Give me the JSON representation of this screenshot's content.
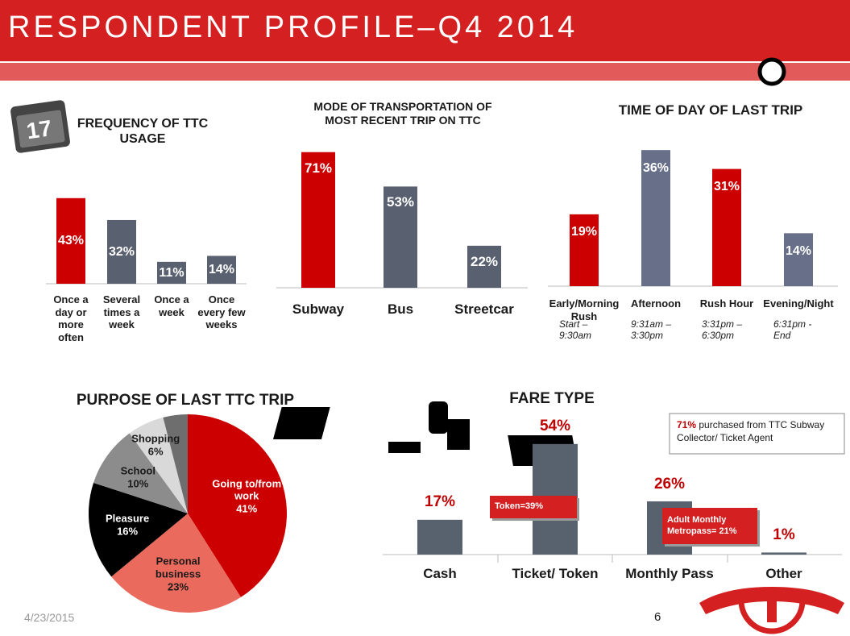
{
  "title": "RESPONDENT PROFILE–Q4 2014",
  "date": "4/23/2015",
  "page_number": "6",
  "chart_data": [
    {
      "type": "bar",
      "title": "FREQUENCY OF TTC USAGE",
      "categories": [
        "Once a day or more often",
        "Several times a week",
        "Once a week",
        "Once every few weeks"
      ],
      "values": [
        43,
        32,
        11,
        14
      ],
      "value_labels": [
        "43%",
        "32%",
        "11%",
        "14%"
      ],
      "colors": [
        "#cc0000",
        "#596170",
        "#596170",
        "#596170"
      ]
    },
    {
      "type": "bar",
      "title": "MODE OF TRANSPORTATION OF MOST RECENT TRIP ON TTC",
      "categories": [
        "Subway",
        "Bus",
        "Streetcar"
      ],
      "values": [
        71,
        53,
        22
      ],
      "value_labels": [
        "71%",
        "53%",
        "22%"
      ],
      "colors": [
        "#cc0000",
        "#596170",
        "#596170"
      ]
    },
    {
      "type": "bar",
      "title": "TIME OF DAY OF LAST TRIP",
      "categories": [
        "Early/Morning Rush",
        "Afternoon",
        "Rush Hour",
        "Evening/Night"
      ],
      "category_sublabels": [
        "Start – 9:30am",
        "9:31am – 3:30pm",
        "3:31pm – 6:30pm",
        "6:31pm - End"
      ],
      "values": [
        19,
        36,
        31,
        14
      ],
      "value_labels": [
        "19%",
        "36%",
        "31%",
        "14%"
      ],
      "colors": [
        "#cc0000",
        "#687089",
        "#cc0000",
        "#687089"
      ]
    },
    {
      "type": "pie",
      "title": "PURPOSE OF LAST TTC TRIP",
      "categories": [
        "Going to/from work",
        "Personal business",
        "Pleasure",
        "School",
        "Shopping",
        null
      ],
      "values": [
        41,
        23,
        16,
        10,
        6,
        4
      ],
      "value_labels": [
        "41%",
        "23%",
        "16%",
        "10%",
        "6%",
        null
      ],
      "colors": [
        "#cc0000",
        "#ea6b5d",
        "#000000",
        "#8c8c8c",
        "#d9d9d9",
        "#6e6e6e"
      ]
    },
    {
      "type": "bar",
      "title": "FARE TYPE",
      "categories": [
        "Cash",
        "Ticket/ Token",
        "Monthly Pass",
        "Other"
      ],
      "values": [
        17,
        54,
        26,
        1
      ],
      "value_labels": [
        "17%",
        "54%",
        "26%",
        "1%"
      ],
      "colors": [
        "#58626f",
        "#58626f",
        "#58626f",
        "#58626f"
      ],
      "annotations": [
        "Token=39%",
        "Adult Monthly Metropass= 21%"
      ],
      "note": {
        "highlight": "71%",
        "text": "purchased from TTC Subway Collector/ Ticket Agent"
      }
    }
  ]
}
